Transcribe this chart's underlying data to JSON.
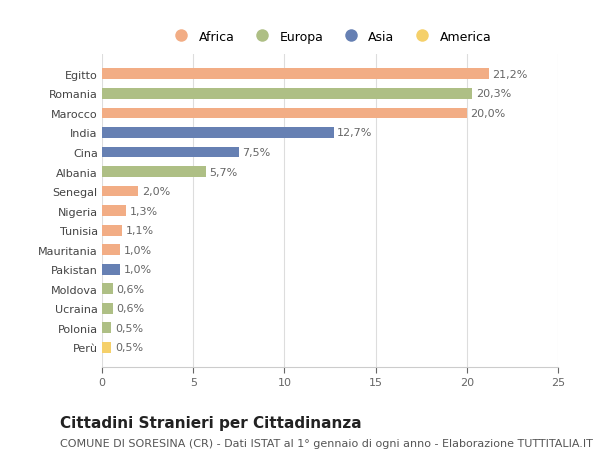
{
  "countries": [
    "Egitto",
    "Romania",
    "Marocco",
    "India",
    "Cina",
    "Albania",
    "Senegal",
    "Nigeria",
    "Tunisia",
    "Mauritania",
    "Pakistan",
    "Moldova",
    "Ucraina",
    "Polonia",
    "Perù"
  ],
  "values": [
    21.2,
    20.3,
    20.0,
    12.7,
    7.5,
    5.7,
    2.0,
    1.3,
    1.1,
    1.0,
    1.0,
    0.6,
    0.6,
    0.5,
    0.5
  ],
  "labels": [
    "21,2%",
    "20,3%",
    "20,0%",
    "12,7%",
    "7,5%",
    "5,7%",
    "2,0%",
    "1,3%",
    "1,1%",
    "1,0%",
    "1,0%",
    "0,6%",
    "0,6%",
    "0,5%",
    "0,5%"
  ],
  "continents": [
    "Africa",
    "Europa",
    "Africa",
    "Asia",
    "Asia",
    "Europa",
    "Africa",
    "Africa",
    "Africa",
    "Africa",
    "Asia",
    "Europa",
    "Europa",
    "Europa",
    "America"
  ],
  "colors": {
    "Africa": "#F2AD85",
    "Europa": "#AEBF85",
    "Asia": "#6680B3",
    "America": "#F5D06A"
  },
  "legend_order": [
    "Africa",
    "Europa",
    "Asia",
    "America"
  ],
  "xlim": [
    0,
    25
  ],
  "xticks": [
    0,
    5,
    10,
    15,
    20,
    25
  ],
  "title": "Cittadini Stranieri per Cittadinanza",
  "subtitle": "COMUNE DI SORESINA (CR) - Dati ISTAT al 1° gennaio di ogni anno - Elaborazione TUTTITALIA.IT",
  "background_color": "#ffffff",
  "bar_height": 0.55,
  "title_fontsize": 11,
  "subtitle_fontsize": 8,
  "label_fontsize": 8,
  "tick_fontsize": 8,
  "legend_fontsize": 9
}
